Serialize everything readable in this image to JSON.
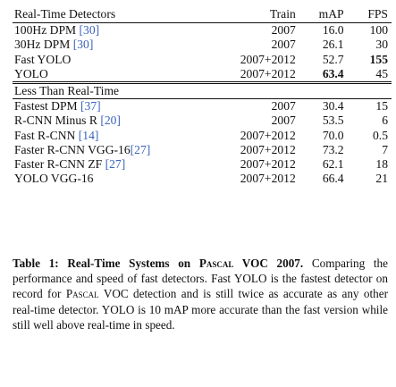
{
  "table": {
    "headers": [
      "Real-Time Detectors",
      "Train",
      "mAP",
      "FPS"
    ],
    "section1": [
      {
        "name": "100Hz DPM",
        "ref": "[30]",
        "train": "2007",
        "map": "16.0",
        "fps": "100"
      },
      {
        "name": "30Hz DPM",
        "ref": "[30]",
        "train": "2007",
        "map": "26.1",
        "fps": "30"
      },
      {
        "name": "Fast YOLO",
        "ref": "",
        "train": "2007+2012",
        "map": "52.7",
        "fps": "155",
        "fps_bold": true
      },
      {
        "name": "YOLO",
        "ref": "",
        "train": "2007+2012",
        "map": "63.4",
        "fps": "45",
        "map_bold": true
      }
    ],
    "section2_title": "Less Than Real-Time",
    "section2": [
      {
        "name": "Fastest DPM",
        "ref": "[37]",
        "train": "2007",
        "map": "30.4",
        "fps": "15"
      },
      {
        "name": "R-CNN Minus R",
        "ref": "[20]",
        "train": "2007",
        "map": "53.5",
        "fps": "6"
      },
      {
        "name": "Fast R-CNN",
        "ref": "[14]",
        "train": "2007+2012",
        "map": "70.0",
        "fps": "0.5"
      },
      {
        "name": "Faster R-CNN VGG-16",
        "ref": "[27]",
        "train": "2007+2012",
        "map": "73.2",
        "fps": "7"
      },
      {
        "name": "Faster R-CNN ZF",
        "ref": "[27]",
        "train": "2007+2012",
        "map": "62.1",
        "fps": "18"
      },
      {
        "name": "YOLO VGG-16",
        "ref": "",
        "train": "2007+2012",
        "map": "66.4",
        "fps": "21"
      }
    ]
  },
  "caption": {
    "label": "Table 1:",
    "title_a": "Real-Time Systems on ",
    "title_sc": "Pascal",
    "title_b": " VOC 2007.",
    "body_a": " Comparing the performance and speed of fast detectors. Fast YOLO is the fastest detector on record for ",
    "body_sc": "Pascal",
    "body_b": " VOC detection and is still twice as accurate as any other real-time detector. YOLO is 10 mAP more accurate than the fast version while still well above real-time in speed."
  }
}
